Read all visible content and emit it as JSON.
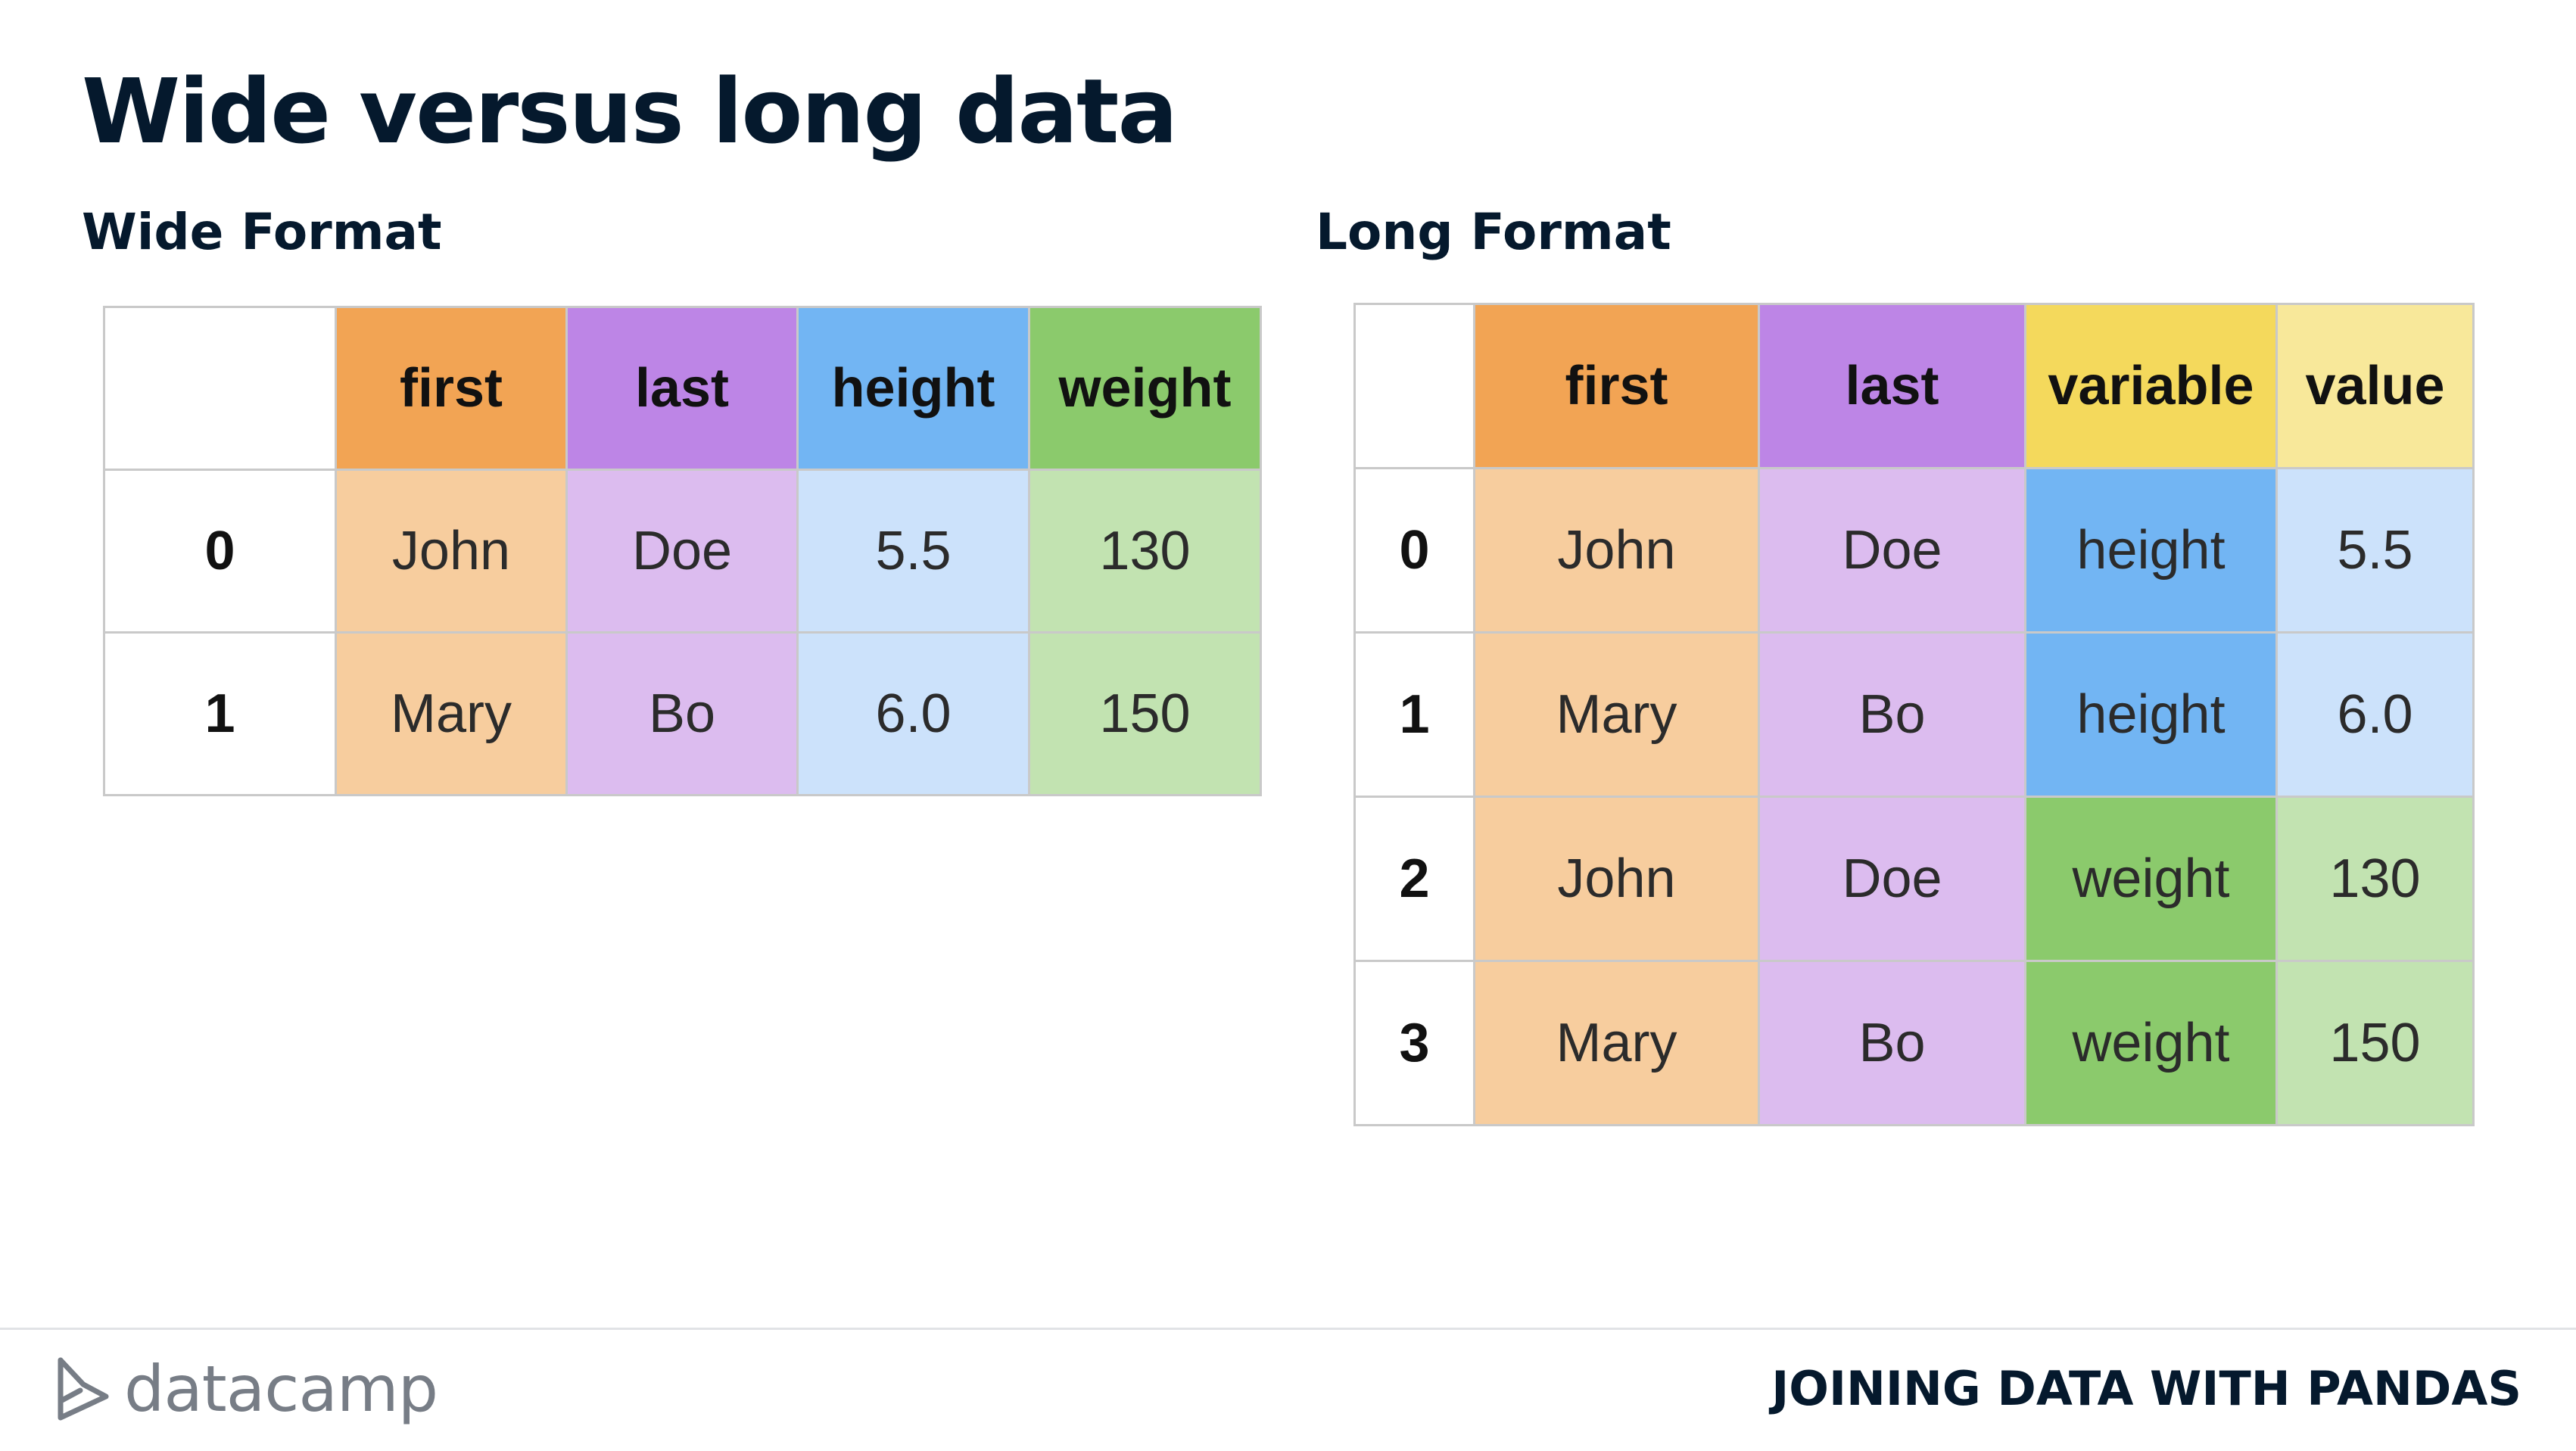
{
  "slide": {
    "title": "Wide versus long data"
  },
  "wide": {
    "heading": "Wide Format",
    "columns": [
      "first",
      "last",
      "height",
      "weight"
    ],
    "rows": [
      {
        "index": "0",
        "first": "John",
        "last": "Doe",
        "height": "5.5",
        "weight": "130"
      },
      {
        "index": "1",
        "first": "Mary",
        "last": "Bo",
        "height": "6.0",
        "weight": "150"
      }
    ]
  },
  "long": {
    "heading": "Long Format",
    "columns": [
      "first",
      "last",
      "variable",
      "value"
    ],
    "rows": [
      {
        "index": "0",
        "first": "John",
        "last": "Doe",
        "variable": "height",
        "value": "5.5"
      },
      {
        "index": "1",
        "first": "Mary",
        "last": "Bo",
        "variable": "height",
        "value": "6.0"
      },
      {
        "index": "2",
        "first": "John",
        "last": "Doe",
        "variable": "weight",
        "value": "130"
      },
      {
        "index": "3",
        "first": "Mary",
        "last": "Bo",
        "variable": "weight",
        "value": "150"
      }
    ]
  },
  "colors": {
    "first_header": "#f2a454",
    "first_cell": "#f7cd9e",
    "last_header": "#bd85e6",
    "last_cell": "#dcbcef",
    "height_header": "#72b5f3",
    "height_cell": "#cce2fb",
    "weight_header": "#8bca6c",
    "weight_cell": "#c2e3b1",
    "variable_header": "#f4d95c",
    "value_header": "#f8e89a"
  },
  "footer": {
    "logo_text": "datacamp",
    "logo_icon": "datacamp-logo-icon",
    "course": "JOINING DATA WITH PANDAS"
  }
}
